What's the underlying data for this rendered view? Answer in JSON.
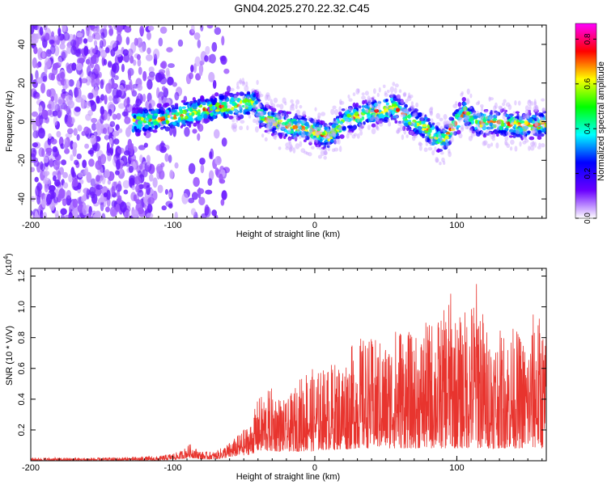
{
  "title": "GN04.2025.270.22.32.C45",
  "chart_data": [
    {
      "type": "heatmap",
      "name": "spectrogram",
      "xlabel": "Height of straight line (km)",
      "ylabel": "Frequency (Hz)",
      "xlim": [
        -200,
        163
      ],
      "ylim": [
        -50,
        50
      ],
      "xticks": [
        -200,
        -100,
        0,
        100
      ],
      "yticks": [
        -40,
        -20,
        0,
        20,
        40
      ],
      "colorbar": {
        "label": "Normalized spectral amplitude",
        "range": [
          0.0,
          0.87
        ],
        "ticks": [
          0.0,
          0.2,
          0.4,
          0.6,
          0.8
        ],
        "colors": [
          "#ffffff",
          "#6a00ff",
          "#0000ff",
          "#00ffff",
          "#00ff00",
          "#ffff00",
          "#ff0000",
          "#ff00ff"
        ]
      },
      "noise_region_x": [
        -200,
        -60
      ],
      "signal_start_x": -128,
      "ridge": {
        "x": [
          -128,
          -110,
          -95,
          -80,
          -70,
          -60,
          -50,
          -42,
          -38,
          -30,
          -20,
          -10,
          0,
          10,
          20,
          30,
          40,
          50,
          55,
          60,
          70,
          78,
          85,
          90,
          100,
          105,
          115,
          125,
          135,
          145,
          155,
          163
        ],
        "freq": [
          0,
          1,
          3,
          6,
          7,
          8,
          9,
          10,
          4,
          0,
          -2,
          -3,
          -5,
          -8,
          0,
          3,
          5,
          6,
          8,
          5,
          0,
          -3,
          -8,
          -10,
          0,
          5,
          -1,
          0,
          -1,
          -2,
          -2,
          -1
        ]
      }
    },
    {
      "type": "line",
      "name": "snr",
      "xlabel": "Height of straight line (km)",
      "ylabel": "SNR (10 * V/V)",
      "yscale_label": "(x10",
      "yscale_exp": "4",
      "xlim": [
        -200,
        163
      ],
      "ylim": [
        0,
        1.25
      ],
      "xticks": [
        -200,
        -100,
        0,
        100
      ],
      "yticks": [
        0.2,
        0.4,
        0.6,
        0.8,
        1.0,
        1.2
      ],
      "ytick_labels": [
        "0.2",
        "0.4",
        "0.6",
        "0.8",
        "1.0",
        "1.2"
      ],
      "color": "#e8342e",
      "envelope": {
        "x": [
          -200,
          -150,
          -110,
          -95,
          -88,
          -80,
          -70,
          -60,
          -55,
          -45,
          -40,
          -30,
          -20,
          -10,
          -5,
          0,
          5,
          10,
          20,
          30,
          40,
          50,
          60,
          70,
          80,
          90,
          95,
          100,
          110,
          115,
          120,
          130,
          140,
          150,
          155,
          163
        ],
        "upper": [
          0.02,
          0.02,
          0.03,
          0.06,
          0.11,
          0.06,
          0.06,
          0.12,
          0.16,
          0.25,
          0.41,
          0.48,
          0.38,
          0.55,
          0.64,
          0.58,
          0.6,
          0.63,
          0.67,
          0.81,
          0.8,
          0.78,
          0.92,
          0.8,
          0.92,
          0.95,
          1.13,
          0.92,
          1.05,
          1.23,
          0.88,
          0.85,
          0.88,
          0.78,
          1.03,
          0.83
        ],
        "lower": [
          0.0,
          0.0,
          0.0,
          0.01,
          0.02,
          0.01,
          0.01,
          0.02,
          0.03,
          0.04,
          0.06,
          0.06,
          0.06,
          0.06,
          0.06,
          0.06,
          0.07,
          0.07,
          0.07,
          0.08,
          0.08,
          0.08,
          0.08,
          0.08,
          0.08,
          0.08,
          0.08,
          0.08,
          0.08,
          0.08,
          0.08,
          0.08,
          0.08,
          0.08,
          0.08,
          0.08
        ]
      }
    }
  ]
}
